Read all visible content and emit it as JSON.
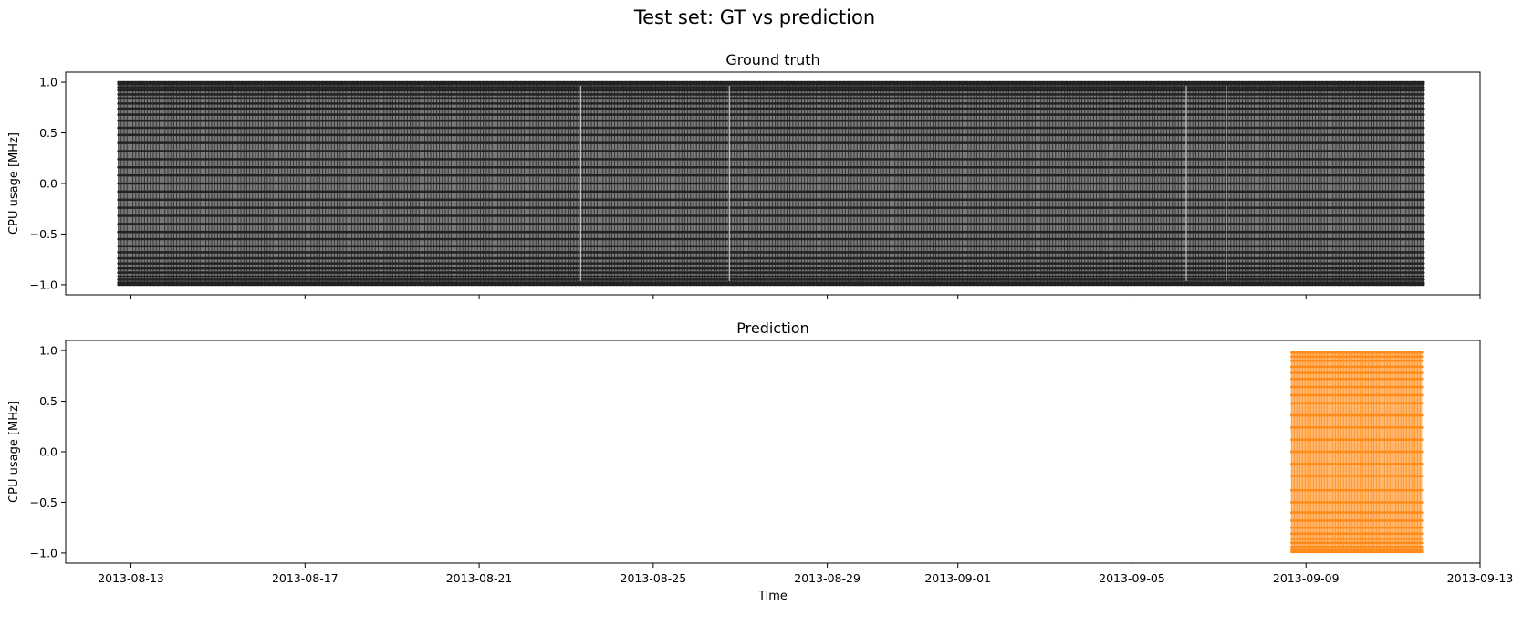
{
  "figure": {
    "suptitle": "Test set: GT vs prediction"
  },
  "chart_data": [
    {
      "type": "line",
      "title": "Ground truth",
      "xlabel": "",
      "ylabel": "CPU usage [MHz]",
      "ylim": [
        -1.1,
        1.1
      ],
      "yticks": [
        -1.0,
        -0.5,
        0.0,
        0.5,
        1.0
      ],
      "ytick_labels": [
        "−1.0",
        "−0.5",
        "0.0",
        "0.5",
        "1.0"
      ],
      "xlim": [
        "2013-08-11T12:00",
        "2013-09-13T00:00"
      ],
      "xticks": [
        "2013-08-13",
        "2013-08-17",
        "2013-08-21",
        "2013-08-25",
        "2013-08-29",
        "2013-09-01",
        "2013-09-05",
        "2013-09-09",
        "2013-09-13"
      ],
      "show_xtick_labels": false,
      "grid": false,
      "series": [
        {
          "color": "#222222",
          "marker": "dot",
          "start": "2013-08-12T17:00",
          "end": "2013-09-11T17:00",
          "values": "oscillating between -1.0 and 1.0 (sine-like, dense)",
          "range": [
            -1.0,
            1.0
          ],
          "point_levels": [
            -1.0,
            -0.98,
            -0.95,
            -0.92,
            -0.88,
            -0.84,
            -0.79,
            -0.74,
            -0.68,
            -0.62,
            -0.55,
            -0.48,
            -0.4,
            -0.32,
            -0.24,
            -0.16,
            -0.08,
            0.0,
            0.08,
            0.16,
            0.24,
            0.32,
            0.4,
            0.48,
            0.55,
            0.62,
            0.68,
            0.74,
            0.79,
            0.84,
            0.88,
            0.92,
            0.95,
            0.98,
            1.0
          ]
        }
      ]
    },
    {
      "type": "line",
      "title": "Prediction",
      "xlabel": "Time",
      "ylabel": "CPU usage [MHz]",
      "ylim": [
        -1.1,
        1.1
      ],
      "yticks": [
        -1.0,
        -0.5,
        0.0,
        0.5,
        1.0
      ],
      "ytick_labels": [
        "−1.0",
        "−0.5",
        "0.0",
        "0.5",
        "1.0"
      ],
      "xlim": [
        "2013-08-11T12:00",
        "2013-09-13T00:00"
      ],
      "xticks": [
        "2013-08-13",
        "2013-08-17",
        "2013-08-21",
        "2013-08-25",
        "2013-08-29",
        "2013-09-01",
        "2013-09-05",
        "2013-09-09",
        "2013-09-13"
      ],
      "show_xtick_labels": true,
      "grid": false,
      "series": [
        {
          "color": "#ff8c1a",
          "marker": "dot",
          "start": "2013-09-08T16:00",
          "end": "2013-09-11T16:00",
          "range": [
            -0.99,
            0.98
          ],
          "point_levels": [
            -0.99,
            -0.97,
            -0.94,
            -0.9,
            -0.86,
            -0.81,
            -0.75,
            -0.68,
            -0.6,
            -0.5,
            -0.38,
            -0.24,
            -0.12,
            0.0,
            0.12,
            0.24,
            0.36,
            0.48,
            0.56,
            0.64,
            0.72,
            0.78,
            0.84,
            0.9,
            0.94,
            0.98
          ]
        }
      ]
    }
  ]
}
